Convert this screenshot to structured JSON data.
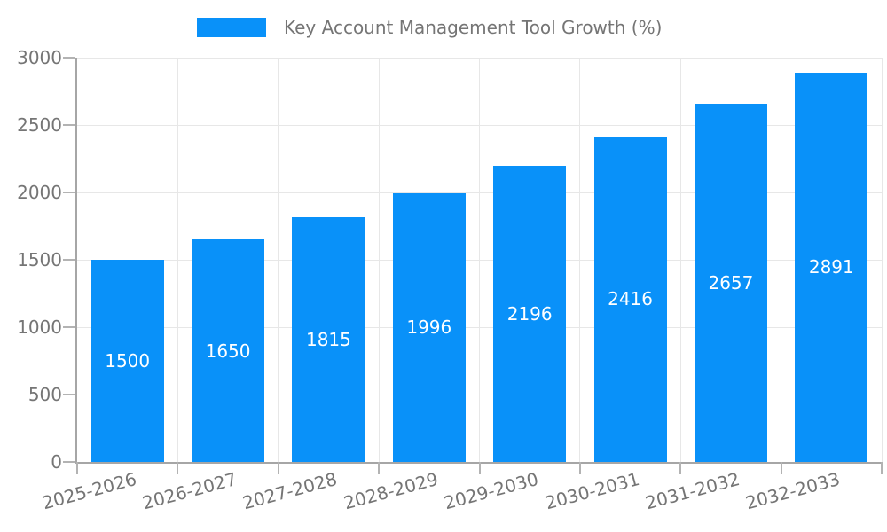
{
  "legend": {
    "label": "Key Account Management Tool Growth (%)"
  },
  "colors": {
    "bar": "#0991f9",
    "grid": "#e7e7e7",
    "axis": "#a6a6a6",
    "tick": "#b3b3b3",
    "text": "#757575",
    "value_label": "#ffffff",
    "background": "#ffffff"
  },
  "chart_data": {
    "type": "bar",
    "title": "Key Account Management Tool Growth (%)",
    "categories": [
      "2025-2026",
      "2026-2027",
      "2027-2028",
      "2028-2029",
      "2029-2030",
      "2030-2031",
      "2031-2032",
      "2032-2033"
    ],
    "series": [
      {
        "name": "Key Account Management Tool Growth (%)",
        "values": [
          1500,
          1650,
          1815,
          1996,
          2196,
          2416,
          2657,
          2891
        ]
      }
    ],
    "values": [
      1500,
      1650,
      1815,
      1996,
      2196,
      2416,
      2657,
      2891
    ],
    "value_labels_shown": true,
    "xlabel": "",
    "ylabel": "",
    "ylim": [
      0,
      3000
    ],
    "yticks": [
      0,
      500,
      1000,
      1500,
      2000,
      2500,
      3000
    ],
    "grid": "horizontal and vertical light gray gridlines",
    "legend_position": "top-center",
    "x_tick_rotation_deg": -15,
    "bar_color": "#0991f9"
  }
}
